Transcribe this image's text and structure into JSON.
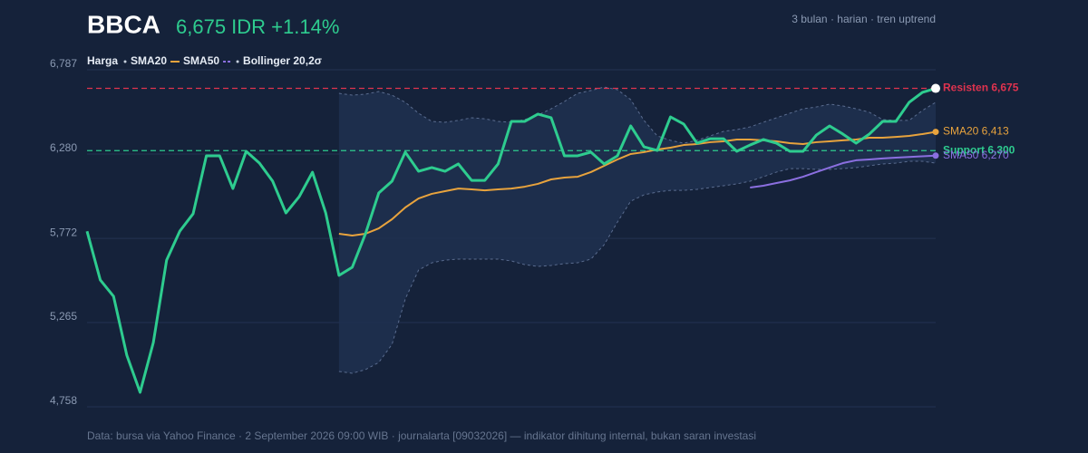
{
  "chart_data": {
    "type": "line",
    "title": "BBCA",
    "price_text": "6,675 IDR +1.14%",
    "subtitle": "3 bulan · harian · tren uptrend",
    "footer": "Data: bursa via Yahoo Finance · 2 September 2026 09:00 WIB · journalarta [09032026] — indikator dihitung internal, bukan saran investasi",
    "ylim": [
      4758,
      6787
    ],
    "yticks": [
      {
        "value": 4758,
        "label": "4,758"
      },
      {
        "value": 5265,
        "label": "5,265"
      },
      {
        "value": 5772,
        "label": "5,772"
      },
      {
        "value": 6280,
        "label": "6,280"
      },
      {
        "value": 6787,
        "label": "6,787"
      }
    ],
    "grid": true,
    "series": [
      {
        "name": "Harga",
        "color": "#2ecc8f",
        "end_label": null,
        "values": [
          5815,
          5521,
          5423,
          5068,
          4845,
          5145,
          5641,
          5816,
          5920,
          6269,
          6269,
          6072,
          6296,
          6225,
          6116,
          5925,
          6023,
          6170,
          5925,
          5549,
          5598,
          5800,
          6045,
          6116,
          6291,
          6176,
          6198,
          6176,
          6220,
          6121,
          6121,
          6220,
          6476,
          6476,
          6520,
          6498,
          6269,
          6269,
          6291,
          6220,
          6269,
          6449,
          6323,
          6301,
          6503,
          6460,
          6345,
          6372,
          6372,
          6296,
          6334,
          6367,
          6345,
          6296,
          6296,
          6394,
          6449,
          6400,
          6345,
          6400,
          6476,
          6476,
          6591,
          6651,
          6675
        ]
      },
      {
        "name": "SMA20",
        "color": "#e8a33d",
        "end_label": "SMA20 6,413",
        "values": [
          null,
          null,
          null,
          null,
          null,
          null,
          null,
          null,
          null,
          null,
          null,
          null,
          null,
          null,
          null,
          null,
          null,
          null,
          null,
          5800,
          5789,
          5800,
          5832,
          5887,
          5958,
          6012,
          6040,
          6056,
          6072,
          6067,
          6061,
          6067,
          6072,
          6083,
          6100,
          6127,
          6138,
          6143,
          6171,
          6209,
          6247,
          6280,
          6291,
          6307,
          6318,
          6334,
          6340,
          6351,
          6356,
          6367,
          6367,
          6362,
          6356,
          6345,
          6340,
          6351,
          6356,
          6362,
          6367,
          6378,
          6378,
          6383,
          6389,
          6400,
          6413
        ]
      },
      {
        "name": "SMA50",
        "color": "#8b6fe0",
        "end_label": "SMA50 6,270",
        "values": [
          null,
          null,
          null,
          null,
          null,
          null,
          null,
          null,
          null,
          null,
          null,
          null,
          null,
          null,
          null,
          null,
          null,
          null,
          null,
          null,
          null,
          null,
          null,
          null,
          null,
          null,
          null,
          null,
          null,
          null,
          null,
          null,
          null,
          null,
          null,
          null,
          null,
          null,
          null,
          null,
          null,
          null,
          null,
          null,
          null,
          null,
          null,
          null,
          null,
          null,
          6078,
          6089,
          6105,
          6121,
          6143,
          6171,
          6198,
          6225,
          6242,
          6247,
          6253,
          6258,
          6262,
          6266,
          6270
        ]
      }
    ],
    "bollinger": {
      "name": "Bollinger 20,2σ",
      "color": "#5a6c8f",
      "upper": [
        null,
        null,
        null,
        null,
        null,
        null,
        null,
        null,
        null,
        null,
        null,
        null,
        null,
        null,
        null,
        null,
        null,
        null,
        null,
        6645,
        6634,
        6640,
        6656,
        6634,
        6591,
        6525,
        6476,
        6471,
        6482,
        6498,
        6492,
        6476,
        6471,
        6487,
        6514,
        6552,
        6596,
        6645,
        6662,
        6683,
        6667,
        6607,
        6482,
        6389,
        6362,
        6345,
        6362,
        6389,
        6416,
        6427,
        6443,
        6471,
        6498,
        6525,
        6552,
        6563,
        6580,
        6569,
        6552,
        6531,
        6487,
        6482,
        6482,
        6542,
        6591
      ],
      "lower": [
        null,
        null,
        null,
        null,
        null,
        null,
        null,
        null,
        null,
        null,
        null,
        null,
        null,
        null,
        null,
        null,
        null,
        null,
        null,
        4971,
        4960,
        4982,
        5025,
        5134,
        5407,
        5581,
        5625,
        5641,
        5647,
        5647,
        5647,
        5647,
        5636,
        5614,
        5603,
        5609,
        5620,
        5625,
        5647,
        5734,
        5870,
        5996,
        6034,
        6051,
        6061,
        6061,
        6067,
        6078,
        6089,
        6100,
        6116,
        6143,
        6171,
        6192,
        6192,
        6187,
        6187,
        6192,
        6198,
        6209,
        6220,
        6225,
        6236,
        6236,
        6225
      ]
    },
    "reference_lines": [
      {
        "value": 6675,
        "label": "Resisten 6,675",
        "color": "#e0334f"
      },
      {
        "value": 6300,
        "label": "Support 6,300",
        "color": "#2ecc8f"
      }
    ]
  }
}
